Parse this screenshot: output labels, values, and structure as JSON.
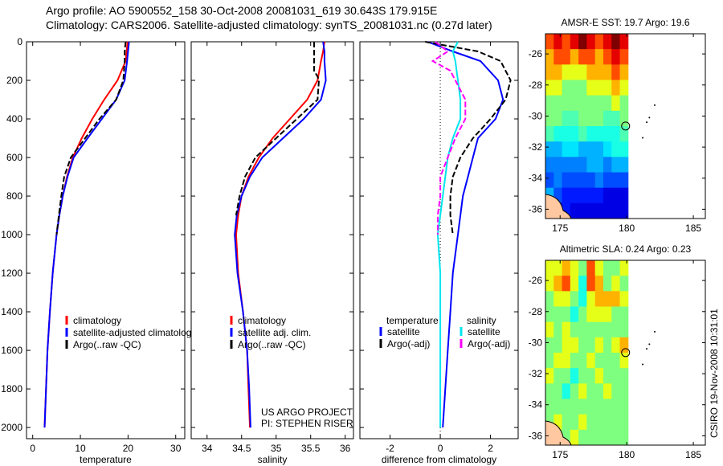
{
  "title_line1": "Argo profile: AO 5900552_158 30-Oct-2008 20081031_619 30.643S 179.915E",
  "title_line2": "Climatology: CARS2006. Satellite-adjusted climatology: synTS_20081031.nc (0.27d later)",
  "stamp": "CSIRO 19-Nov-2008 10:31:01",
  "project_line1": "US ARGO PROJECT",
  "project_line2": "PI: STEPHEN RISER",
  "colors": {
    "clim": "#ff0000",
    "sat": "#0000ff",
    "argo": "#000000",
    "sal_sat": "#00e5ee",
    "sal_argo": "#ff00ff"
  },
  "chart_data": [
    {
      "type": "line",
      "xlabel": "temperature",
      "xlim": [
        -1.3,
        31.9
      ],
      "ylim": [
        0,
        2058
      ],
      "xticks": [
        0,
        10,
        20,
        30
      ],
      "yticks": [
        0,
        200,
        400,
        600,
        800,
        1000,
        1200,
        1400,
        1600,
        1800,
        2000
      ],
      "legend": [
        "climatology",
        "satellite-adjusted climatology",
        "Argo(..raw -QC)"
      ],
      "depth": [
        0,
        50,
        100,
        200,
        300,
        400,
        500,
        600,
        700,
        800,
        900,
        1000,
        1200,
        1400,
        1600,
        1800,
        2000
      ],
      "series": [
        {
          "name": "climatology",
          "color": "#ff0000",
          "values": [
            19.9,
            19.7,
            19.5,
            17.8,
            15,
            12.5,
            10.3,
            8.4,
            7.2,
            6.3,
            5.6,
            5,
            4.2,
            3.6,
            3.1,
            2.8,
            2.5
          ]
        },
        {
          "name": "satellite-adjusted climatology",
          "color": "#0000ff",
          "values": [
            20.2,
            20,
            19.8,
            19.3,
            17.5,
            14.5,
            11.5,
            8.6,
            7.3,
            6.3,
            5.6,
            5,
            4.2,
            3.6,
            3.1,
            2.8,
            2.5
          ]
        },
        {
          "name": "Argo(..raw -QC)",
          "color": "#000000",
          "dash": true,
          "depth": [
            0,
            50,
            100,
            200,
            300,
            400,
            500,
            600,
            700,
            800,
            900,
            1000
          ],
          "values": [
            19.5,
            19.3,
            19.3,
            19,
            17.5,
            14,
            11,
            8,
            6.6,
            6,
            5.5,
            5
          ]
        }
      ]
    },
    {
      "type": "line",
      "xlabel": "salinity",
      "xlim": [
        33.77,
        36.12
      ],
      "ylim": [
        0,
        2058
      ],
      "xticks": [
        34,
        34.5,
        35,
        35.5,
        36
      ],
      "xticklabels": [
        "34",
        "34.5",
        "35",
        "35.5",
        "36"
      ],
      "legend": [
        "climatology",
        "satellite adj. clim.",
        "Argo(..raw -QC)"
      ],
      "depth": [
        0,
        50,
        100,
        200,
        300,
        400,
        500,
        600,
        700,
        800,
        900,
        1000,
        1200,
        1400,
        1600,
        1800,
        2000
      ],
      "series": [
        {
          "name": "climatology",
          "color": "#ff0000",
          "values": [
            35.7,
            35.68,
            35.65,
            35.6,
            35.45,
            35.2,
            34.95,
            34.75,
            34.6,
            34.5,
            34.45,
            34.42,
            34.45,
            34.52,
            34.58,
            34.6,
            34.62
          ]
        },
        {
          "name": "satellite adj. clim.",
          "color": "#0000ff",
          "values": [
            35.68,
            35.7,
            35.7,
            35.72,
            35.65,
            35.4,
            35.1,
            34.8,
            34.62,
            34.5,
            34.43,
            34.4,
            34.44,
            34.52,
            34.58,
            34.61,
            34.63
          ]
        },
        {
          "name": "Argo(..raw -QC)",
          "color": "#000000",
          "dash": true,
          "depth": [
            0,
            50,
            100,
            150,
            180,
            200,
            300,
            400,
            500,
            600,
            700,
            800,
            900
          ],
          "values": [
            35.55,
            35.55,
            35.55,
            35.55,
            35.6,
            35.62,
            35.6,
            35.3,
            35,
            34.7,
            34.55,
            34.47,
            34.42
          ]
        }
      ]
    },
    {
      "type": "line",
      "xlabel": "difference from climatology",
      "xlim": [
        -3.2,
        3.1
      ],
      "ylim": [
        0,
        2058
      ],
      "xticks": [
        -2,
        0,
        2
      ],
      "legend_headers": [
        "temperature",
        "salinity"
      ],
      "legend": [
        "satellite",
        "Argo(-adj)",
        "satellite",
        "Argo(-adj)"
      ],
      "depth": [
        0,
        50,
        100,
        200,
        300,
        400,
        500,
        600,
        700,
        800,
        1000,
        1200,
        1400,
        1600,
        1800,
        2000
      ],
      "series": [
        {
          "name": "temperature satellite",
          "color": "#0000ff",
          "values": [
            -0.5,
            0.5,
            1.6,
            2.3,
            2.5,
            2.2,
            1.5,
            1.3,
            1.1,
            0.9,
            0.7,
            0.5,
            0.4,
            0.3,
            0.2,
            0.1
          ]
        },
        {
          "name": "salinity satellite",
          "color": "#00e5ee",
          "values": [
            0.7,
            0.5,
            0.6,
            0.7,
            0.8,
            0.8,
            0.5,
            0.3,
            0.2,
            0.1,
            -0.1,
            0,
            0,
            0,
            0,
            0
          ]
        },
        {
          "name": "temperature Argo(-adj)",
          "color": "#000000",
          "dash": true,
          "depth": [
            0,
            50,
            100,
            200,
            300,
            400,
            500,
            600,
            700,
            800,
            900,
            1000
          ],
          "values": [
            -0.6,
            1.5,
            2.4,
            2.8,
            2.6,
            2,
            1.3,
            0.8,
            0.5,
            0.4,
            0.4,
            0.5
          ]
        },
        {
          "name": "salinity Argo(-adj)",
          "color": "#ff00ff",
          "dash": true,
          "depth": [
            0,
            50,
            100,
            150,
            300,
            400,
            500,
            600,
            700,
            800,
            900,
            1000
          ],
          "values": [
            -0.2,
            0.3,
            -0.3,
            0.4,
            1,
            1,
            0.6,
            0.3,
            0,
            0,
            -0.1,
            -0.1
          ]
        }
      ]
    },
    {
      "type": "heatmap",
      "title": "AMSR-E SST: 19.7 Argo: 19.6",
      "xlim": [
        173.9,
        185.9
      ],
      "ylim": [
        -36.6,
        -24.7
      ],
      "xticks": [
        175,
        180,
        185
      ],
      "yticks": [
        -26,
        -28,
        -30,
        -32,
        -34,
        -36
      ],
      "marker": [
        179.915,
        -30.643
      ],
      "lon_range": [
        173.9,
        180.1
      ],
      "grid": [
        [
          8,
          9,
          8,
          9,
          10,
          9,
          8,
          9,
          10,
          9
        ],
        [
          7,
          8,
          8,
          7,
          8,
          8,
          7,
          8,
          9,
          8
        ],
        [
          7,
          7,
          6,
          6,
          6,
          7,
          7,
          7,
          8,
          7
        ],
        [
          6,
          6,
          5,
          5,
          5,
          6,
          6,
          6,
          7,
          6
        ],
        [
          5,
          5,
          5,
          5,
          5,
          5,
          5,
          5,
          6,
          5
        ],
        [
          5,
          5,
          4.5,
          4.5,
          5,
          5,
          5,
          4.5,
          4.5,
          5
        ],
        [
          4.5,
          4,
          4,
          4,
          4.5,
          4,
          4,
          4,
          4,
          4.5
        ],
        [
          3,
          3,
          3.5,
          3.5,
          3,
          3,
          3,
          3.5,
          4,
          4
        ],
        [
          2.5,
          2.5,
          2.5,
          2.5,
          2.5,
          3,
          3,
          2.5,
          3,
          3
        ],
        [
          2,
          2.5,
          2,
          2,
          2,
          2,
          2.5,
          2,
          2,
          2
        ],
        [
          3,
          2,
          1.5,
          1.5,
          1.5,
          1.5,
          1.5,
          1,
          1,
          1
        ],
        [
          1,
          1,
          1.5,
          1,
          1,
          1,
          1,
          1,
          1,
          1
        ]
      ]
    },
    {
      "type": "heatmap",
      "title": "Altimetric SLA: 0.24 Argo: 0.23",
      "xlim": [
        173.9,
        185.9
      ],
      "ylim": [
        -36.6,
        -24.7
      ],
      "xticks": [
        175,
        180,
        185
      ],
      "yticks": [
        -26,
        -28,
        -30,
        -32,
        -34,
        -36
      ],
      "marker": [
        179.915,
        -30.643
      ],
      "lon_range": [
        173.9,
        180.1
      ],
      "grid": [
        [
          6,
          6,
          7,
          6,
          5,
          8,
          6,
          5,
          5,
          6
        ],
        [
          6,
          7,
          8,
          6,
          4,
          8,
          7,
          5,
          6,
          5
        ],
        [
          5,
          6,
          6,
          5,
          4,
          6,
          7,
          7,
          7,
          6
        ],
        [
          5,
          5,
          5,
          4,
          5,
          6,
          6,
          6,
          5,
          5
        ],
        [
          6,
          5,
          6,
          5,
          5,
          5,
          5,
          5,
          5,
          5
        ],
        [
          5,
          5,
          6,
          6,
          5,
          5,
          6,
          5,
          6,
          7
        ],
        [
          5,
          6,
          6,
          5,
          5,
          6,
          5,
          5,
          5,
          6
        ],
        [
          6,
          5,
          5,
          4,
          5,
          5,
          6,
          5,
          5,
          5
        ],
        [
          5,
          5,
          4,
          5,
          6,
          5,
          5,
          6,
          5,
          5
        ],
        [
          5,
          5,
          5,
          5,
          5,
          5,
          5,
          5,
          5,
          5
        ],
        [
          5,
          6,
          5,
          5,
          6,
          5,
          5,
          5,
          5,
          5
        ],
        [
          5,
          5,
          5,
          6,
          5,
          5,
          5,
          5,
          5,
          5
        ]
      ]
    }
  ]
}
